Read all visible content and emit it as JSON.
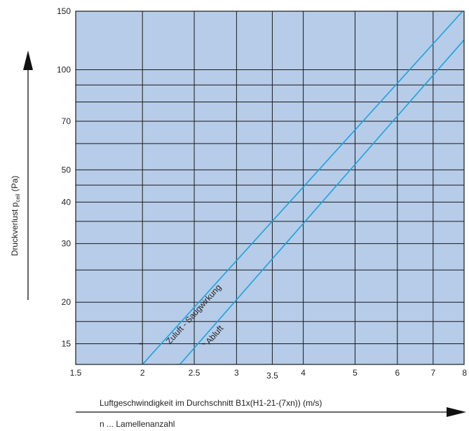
{
  "chart_data": {
    "type": "line",
    "x_scale": "log",
    "y_scale": "log",
    "xlim": [
      1.5,
      8
    ],
    "ylim": [
      13,
      150
    ],
    "x_ticks": [
      1.5,
      2,
      2.5,
      3,
      3.5,
      4,
      5,
      6,
      7,
      8
    ],
    "x_tick_labels": [
      "1.5",
      "2",
      "2.5",
      "3",
      "3.5",
      "4",
      "5",
      "6",
      "7",
      "8"
    ],
    "y_ticks": [
      15,
      20,
      30,
      40,
      50,
      70,
      100,
      150
    ],
    "y_tick_labels": [
      "15",
      "20",
      "30",
      "40",
      "50",
      "70",
      "100",
      "150"
    ],
    "y_extra_gridlines": [
      17.5,
      25,
      35,
      45,
      60,
      80,
      90
    ],
    "grid": true,
    "plot_background": "#b6cce8",
    "grid_color": "#1a1a1a",
    "line_color": "#1aa3e0",
    "xlabel": "Luftgeschwindigkeit im Durchschnitt B1x(H1-21-(7xn))   (m/s)",
    "xlabel_note": "n ... Lamellenanzahl",
    "ylabel_main": "Druckverlust ",
    "ylabel_sym": "p",
    "ylabel_sub": "ceil",
    "ylabel_unit": "(Pa)",
    "series": [
      {
        "name": "Zuluft - Saugwirkung",
        "x": [
          2.0,
          7.95
        ],
        "y": [
          13.0,
          150.0
        ]
      },
      {
        "name": "Abluft",
        "x": [
          2.35,
          8.0
        ],
        "y": [
          13.0,
          123.0
        ]
      }
    ]
  }
}
